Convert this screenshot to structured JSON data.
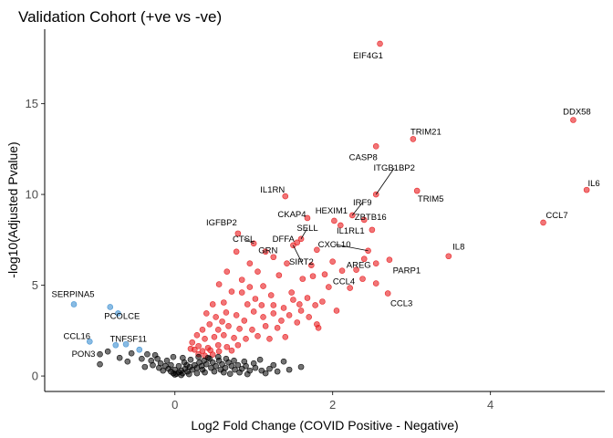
{
  "chart_data": {
    "type": "scatter",
    "title": "Validation Cohort (+ve vs -ve)",
    "xlabel": "Log2 Fold Change (COVID Positive - Negative)",
    "ylabel": "-log10(Adjusted Pvalue)",
    "xlim": [
      -1.65,
      5.45
    ],
    "ylim": [
      -0.85,
      19.1
    ],
    "xticks": [
      0,
      2,
      4
    ],
    "yticks": [
      0,
      5,
      10,
      15
    ],
    "grid": false,
    "legend": "none",
    "colors": {
      "up": "#e8191c",
      "down": "#3b8ed0",
      "ns": "#000000"
    },
    "labeled_points": [
      {
        "gene": "EIF4G1",
        "x": 2.6,
        "y": 18.3,
        "group": "up"
      },
      {
        "gene": "DDX58",
        "x": 5.05,
        "y": 14.1,
        "group": "up"
      },
      {
        "gene": "TRIM21",
        "x": 3.02,
        "y": 13.05,
        "group": "up"
      },
      {
        "gene": "CASP8",
        "x": 2.55,
        "y": 12.65,
        "group": "up"
      },
      {
        "gene": "IL6",
        "x": 5.22,
        "y": 10.25,
        "group": "up"
      },
      {
        "gene": "ITGB1BP2",
        "x": 2.55,
        "y": 10.0,
        "group": "up"
      },
      {
        "gene": "TRIM5",
        "x": 3.07,
        "y": 10.2,
        "group": "up"
      },
      {
        "gene": "IL1RN",
        "x": 1.4,
        "y": 9.9,
        "group": "up"
      },
      {
        "gene": "IRF9",
        "x": 2.25,
        "y": 8.85,
        "group": "up"
      },
      {
        "gene": "CCL7",
        "x": 4.67,
        "y": 8.45,
        "group": "up"
      },
      {
        "gene": "CKAP4",
        "x": 1.68,
        "y": 8.7,
        "group": "up"
      },
      {
        "gene": "HEXIM1",
        "x": 2.02,
        "y": 8.55,
        "group": "up"
      },
      {
        "gene": "ZBTB16",
        "x": 2.4,
        "y": 8.6,
        "group": "up"
      },
      {
        "gene": "IGFBP2",
        "x": 0.8,
        "y": 7.85,
        "group": "up"
      },
      {
        "gene": "SELL",
        "x": 1.6,
        "y": 7.55,
        "group": "up"
      },
      {
        "gene": "IL1RL1",
        "x": 2.1,
        "y": 8.3,
        "group": "up"
      },
      {
        "gene": "CTSL",
        "x": 1.0,
        "y": 7.3,
        "group": "up"
      },
      {
        "gene": "DFFA",
        "x": 1.55,
        "y": 7.35,
        "group": "up"
      },
      {
        "gene": "IL8",
        "x": 3.47,
        "y": 6.6,
        "group": "up"
      },
      {
        "gene": "CXCL10",
        "x": 2.45,
        "y": 6.9,
        "group": "up"
      },
      {
        "gene": "SIRT2",
        "x": 1.5,
        "y": 7.2,
        "group": "up"
      },
      {
        "gene": "GRN",
        "x": 1.25,
        "y": 6.55,
        "group": "up"
      },
      {
        "gene": "AREG",
        "x": 2.4,
        "y": 6.45,
        "group": "up"
      },
      {
        "gene": "PARP1",
        "x": 2.72,
        "y": 6.4,
        "group": "up"
      },
      {
        "gene": "CCL4",
        "x": 2.12,
        "y": 5.8,
        "group": "up"
      },
      {
        "gene": "CCL3",
        "x": 2.7,
        "y": 4.55,
        "group": "up"
      },
      {
        "gene": "SERPINA5",
        "x": -1.28,
        "y": 3.95,
        "group": "down"
      },
      {
        "gene": "PCOLCE",
        "x": -0.82,
        "y": 3.8,
        "group": "down"
      },
      {
        "gene": "CCL16",
        "x": -1.08,
        "y": 1.9,
        "group": "down"
      },
      {
        "gene": "TNFSF11",
        "x": -0.75,
        "y": 1.7,
        "group": "down"
      },
      {
        "gene": "PON3",
        "x": -0.95,
        "y": 1.2,
        "group": "ns"
      }
    ],
    "points": [
      {
        "x": -1.28,
        "y": 3.95,
        "group": "down"
      },
      {
        "x": -0.82,
        "y": 3.8,
        "group": "down"
      },
      {
        "x": -0.72,
        "y": 3.45,
        "group": "down"
      },
      {
        "x": -1.08,
        "y": 1.9,
        "group": "down"
      },
      {
        "x": -0.75,
        "y": 1.7,
        "group": "down"
      },
      {
        "x": -0.45,
        "y": 1.45,
        "group": "down"
      },
      {
        "x": -0.62,
        "y": 1.75,
        "group": "down"
      },
      {
        "x": 2.6,
        "y": 18.3,
        "group": "up"
      },
      {
        "x": 5.05,
        "y": 14.1,
        "group": "up"
      },
      {
        "x": 3.02,
        "y": 13.05,
        "group": "up"
      },
      {
        "x": 2.55,
        "y": 12.65,
        "group": "up"
      },
      {
        "x": 5.22,
        "y": 10.25,
        "group": "up"
      },
      {
        "x": 2.55,
        "y": 10.0,
        "group": "up"
      },
      {
        "x": 3.07,
        "y": 10.2,
        "group": "up"
      },
      {
        "x": 1.4,
        "y": 9.9,
        "group": "up"
      },
      {
        "x": 2.25,
        "y": 8.85,
        "group": "up"
      },
      {
        "x": 4.67,
        "y": 8.45,
        "group": "up"
      },
      {
        "x": 1.68,
        "y": 8.7,
        "group": "up"
      },
      {
        "x": 2.02,
        "y": 8.55,
        "group": "up"
      },
      {
        "x": 2.4,
        "y": 8.6,
        "group": "up"
      },
      {
        "x": 2.5,
        "y": 8.05,
        "group": "up"
      },
      {
        "x": 0.8,
        "y": 7.85,
        "group": "up"
      },
      {
        "x": 1.6,
        "y": 7.55,
        "group": "up"
      },
      {
        "x": 2.1,
        "y": 8.3,
        "group": "up"
      },
      {
        "x": 1.0,
        "y": 7.3,
        "group": "up"
      },
      {
        "x": 1.55,
        "y": 7.35,
        "group": "up"
      },
      {
        "x": 3.47,
        "y": 6.6,
        "group": "up"
      },
      {
        "x": 2.45,
        "y": 6.9,
        "group": "up"
      },
      {
        "x": 1.5,
        "y": 7.2,
        "group": "up"
      },
      {
        "x": 1.25,
        "y": 6.55,
        "group": "up"
      },
      {
        "x": 2.4,
        "y": 6.45,
        "group": "up"
      },
      {
        "x": 2.72,
        "y": 6.4,
        "group": "up"
      },
      {
        "x": 2.12,
        "y": 5.8,
        "group": "up"
      },
      {
        "x": 2.7,
        "y": 4.55,
        "group": "up"
      },
      {
        "x": 2.55,
        "y": 5.1,
        "group": "up"
      },
      {
        "x": 2.22,
        "y": 4.85,
        "group": "up"
      },
      {
        "x": 1.9,
        "y": 5.6,
        "group": "up"
      },
      {
        "x": 2.38,
        "y": 5.35,
        "group": "up"
      },
      {
        "x": 1.8,
        "y": 6.95,
        "group": "up"
      },
      {
        "x": 2.0,
        "y": 6.3,
        "group": "up"
      },
      {
        "x": 2.3,
        "y": 5.85,
        "group": "up"
      },
      {
        "x": 2.55,
        "y": 6.2,
        "group": "up"
      },
      {
        "x": 1.73,
        "y": 6.1,
        "group": "up"
      },
      {
        "x": 1.62,
        "y": 5.35,
        "group": "up"
      },
      {
        "x": 1.42,
        "y": 6.2,
        "group": "up"
      },
      {
        "x": 1.15,
        "y": 6.85,
        "group": "up"
      },
      {
        "x": 0.78,
        "y": 6.85,
        "group": "up"
      },
      {
        "x": 0.95,
        "y": 6.2,
        "group": "up"
      },
      {
        "x": 1.05,
        "y": 5.75,
        "group": "up"
      },
      {
        "x": 0.85,
        "y": 5.3,
        "group": "up"
      },
      {
        "x": 1.32,
        "y": 5.55,
        "group": "up"
      },
      {
        "x": 1.12,
        "y": 4.95,
        "group": "up"
      },
      {
        "x": 1.48,
        "y": 4.6,
        "group": "up"
      },
      {
        "x": 1.68,
        "y": 4.3,
        "group": "up"
      },
      {
        "x": 1.87,
        "y": 4.1,
        "group": "up"
      },
      {
        "x": 1.58,
        "y": 3.95,
        "group": "up"
      },
      {
        "x": 1.38,
        "y": 3.75,
        "group": "up"
      },
      {
        "x": 1.22,
        "y": 4.45,
        "group": "up"
      },
      {
        "x": 1.02,
        "y": 4.25,
        "group": "up"
      },
      {
        "x": 0.92,
        "y": 3.95,
        "group": "up"
      },
      {
        "x": 0.72,
        "y": 4.65,
        "group": "up"
      },
      {
        "x": 0.62,
        "y": 4.05,
        "group": "up"
      },
      {
        "x": 0.56,
        "y": 5.05,
        "group": "up"
      },
      {
        "x": 0.66,
        "y": 5.75,
        "group": "up"
      },
      {
        "x": 0.48,
        "y": 3.95,
        "group": "up"
      },
      {
        "x": 0.4,
        "y": 3.45,
        "group": "up"
      },
      {
        "x": 0.52,
        "y": 3.25,
        "group": "up"
      },
      {
        "x": 0.65,
        "y": 3.5,
        "group": "up"
      },
      {
        "x": 0.78,
        "y": 3.35,
        "group": "up"
      },
      {
        "x": 0.88,
        "y": 3.05,
        "group": "up"
      },
      {
        "x": 1.0,
        "y": 3.55,
        "group": "up"
      },
      {
        "x": 1.12,
        "y": 3.25,
        "group": "up"
      },
      {
        "x": 1.25,
        "y": 3.45,
        "group": "up"
      },
      {
        "x": 1.35,
        "y": 3.05,
        "group": "up"
      },
      {
        "x": 1.45,
        "y": 3.35,
        "group": "up"
      },
      {
        "x": 1.55,
        "y": 2.95,
        "group": "up"
      },
      {
        "x": 1.7,
        "y": 3.25,
        "group": "up"
      },
      {
        "x": 1.8,
        "y": 2.85,
        "group": "up"
      },
      {
        "x": 1.3,
        "y": 2.65,
        "group": "up"
      },
      {
        "x": 1.15,
        "y": 2.75,
        "group": "up"
      },
      {
        "x": 0.98,
        "y": 2.55,
        "group": "up"
      },
      {
        "x": 0.82,
        "y": 2.6,
        "group": "up"
      },
      {
        "x": 0.68,
        "y": 2.75,
        "group": "up"
      },
      {
        "x": 0.55,
        "y": 2.55,
        "group": "up"
      },
      {
        "x": 0.44,
        "y": 2.85,
        "group": "up"
      },
      {
        "x": 0.35,
        "y": 2.55,
        "group": "up"
      },
      {
        "x": 0.28,
        "y": 2.25,
        "group": "up"
      },
      {
        "x": 0.38,
        "y": 2.05,
        "group": "up"
      },
      {
        "x": 0.5,
        "y": 2.15,
        "group": "up"
      },
      {
        "x": 0.62,
        "y": 2.25,
        "group": "up"
      },
      {
        "x": 0.75,
        "y": 2.1,
        "group": "up"
      },
      {
        "x": 0.9,
        "y": 2.05,
        "group": "up"
      },
      {
        "x": 1.05,
        "y": 2.2,
        "group": "up"
      },
      {
        "x": 1.2,
        "y": 2.05,
        "group": "up"
      },
      {
        "x": 1.4,
        "y": 2.15,
        "group": "up"
      },
      {
        "x": 0.22,
        "y": 1.85,
        "group": "up"
      },
      {
        "x": 0.3,
        "y": 1.65,
        "group": "up"
      },
      {
        "x": 0.42,
        "y": 1.55,
        "group": "up"
      },
      {
        "x": 0.55,
        "y": 1.7,
        "group": "up"
      },
      {
        "x": 0.66,
        "y": 1.6,
        "group": "up"
      },
      {
        "x": 0.8,
        "y": 1.7,
        "group": "up"
      },
      {
        "x": 0.25,
        "y": 1.45,
        "group": "up"
      },
      {
        "x": 0.35,
        "y": 1.38,
        "group": "up"
      },
      {
        "x": 0.45,
        "y": 1.42,
        "group": "up"
      },
      {
        "x": 0.56,
        "y": 1.36,
        "group": "up"
      },
      {
        "x": 0.72,
        "y": 1.4,
        "group": "up"
      },
      {
        "x": 0.2,
        "y": 1.5,
        "group": "up"
      },
      {
        "x": 0.3,
        "y": 1.2,
        "group": "up"
      },
      {
        "x": 0.48,
        "y": 1.18,
        "group": "up"
      },
      {
        "x": 0.38,
        "y": 1.12,
        "group": "up"
      },
      {
        "x": 2.05,
        "y": 3.6,
        "group": "up"
      },
      {
        "x": 1.95,
        "y": 4.9,
        "group": "up"
      },
      {
        "x": 0.85,
        "y": 4.6,
        "group": "up"
      },
      {
        "x": 1.25,
        "y": 3.9,
        "group": "up"
      },
      {
        "x": 0.6,
        "y": 3.0,
        "group": "up"
      },
      {
        "x": 1.1,
        "y": 3.9,
        "group": "up"
      },
      {
        "x": 1.6,
        "y": 3.6,
        "group": "up"
      },
      {
        "x": 1.78,
        "y": 3.9,
        "group": "up"
      },
      {
        "x": 1.5,
        "y": 4.2,
        "group": "up"
      },
      {
        "x": 0.95,
        "y": 4.9,
        "group": "up"
      },
      {
        "x": 1.75,
        "y": 5.5,
        "group": "up"
      },
      {
        "x": 1.82,
        "y": 2.65,
        "group": "up"
      },
      {
        "x": -0.95,
        "y": 1.2,
        "group": "ns"
      },
      {
        "x": -0.85,
        "y": 1.35,
        "group": "ns"
      },
      {
        "x": -0.95,
        "y": 0.65,
        "group": "ns"
      },
      {
        "x": -0.55,
        "y": 1.25,
        "group": "ns"
      },
      {
        "x": -0.35,
        "y": 1.2,
        "group": "ns"
      },
      {
        "x": -0.25,
        "y": 1.15,
        "group": "ns"
      },
      {
        "x": -0.42,
        "y": 0.95,
        "group": "ns"
      },
      {
        "x": -0.3,
        "y": 0.85,
        "group": "ns"
      },
      {
        "x": -0.22,
        "y": 0.95,
        "group": "ns"
      },
      {
        "x": -0.18,
        "y": 0.7,
        "group": "ns"
      },
      {
        "x": -0.12,
        "y": 0.55,
        "group": "ns"
      },
      {
        "x": -0.08,
        "y": 0.4,
        "group": "ns"
      },
      {
        "x": -0.05,
        "y": 0.25,
        "group": "ns"
      },
      {
        "x": -0.02,
        "y": 0.15,
        "group": "ns"
      },
      {
        "x": 0.0,
        "y": 0.08,
        "group": "ns"
      },
      {
        "x": 0.02,
        "y": 0.12,
        "group": "ns"
      },
      {
        "x": 0.05,
        "y": 0.2,
        "group": "ns"
      },
      {
        "x": 0.08,
        "y": 0.3,
        "group": "ns"
      },
      {
        "x": 0.1,
        "y": 0.15,
        "group": "ns"
      },
      {
        "x": 0.13,
        "y": 0.4,
        "group": "ns"
      },
      {
        "x": 0.16,
        "y": 0.25,
        "group": "ns"
      },
      {
        "x": 0.19,
        "y": 0.5,
        "group": "ns"
      },
      {
        "x": 0.22,
        "y": 0.35,
        "group": "ns"
      },
      {
        "x": 0.25,
        "y": 0.6,
        "group": "ns"
      },
      {
        "x": 0.28,
        "y": 0.45,
        "group": "ns"
      },
      {
        "x": 0.31,
        "y": 0.75,
        "group": "ns"
      },
      {
        "x": 0.34,
        "y": 0.55,
        "group": "ns"
      },
      {
        "x": 0.37,
        "y": 0.85,
        "group": "ns"
      },
      {
        "x": 0.4,
        "y": 0.65,
        "group": "ns"
      },
      {
        "x": 0.44,
        "y": 0.95,
        "group": "ns"
      },
      {
        "x": 0.48,
        "y": 0.75,
        "group": "ns"
      },
      {
        "x": 0.52,
        "y": 0.55,
        "group": "ns"
      },
      {
        "x": 0.56,
        "y": 0.85,
        "group": "ns"
      },
      {
        "x": 0.6,
        "y": 0.65,
        "group": "ns"
      },
      {
        "x": 0.64,
        "y": 0.45,
        "group": "ns"
      },
      {
        "x": 0.68,
        "y": 0.75,
        "group": "ns"
      },
      {
        "x": 0.72,
        "y": 0.55,
        "group": "ns"
      },
      {
        "x": 0.76,
        "y": 0.35,
        "group": "ns"
      },
      {
        "x": 0.8,
        "y": 0.6,
        "group": "ns"
      },
      {
        "x": 0.85,
        "y": 0.4,
        "group": "ns"
      },
      {
        "x": 0.9,
        "y": 0.55,
        "group": "ns"
      },
      {
        "x": 0.95,
        "y": 0.3,
        "group": "ns"
      },
      {
        "x": 1.02,
        "y": 0.45,
        "group": "ns"
      },
      {
        "x": 1.1,
        "y": 0.3,
        "group": "ns"
      },
      {
        "x": 1.2,
        "y": 0.4,
        "group": "ns"
      },
      {
        "x": 1.3,
        "y": 0.25,
        "group": "ns"
      },
      {
        "x": 1.45,
        "y": 0.35,
        "group": "ns"
      },
      {
        "x": 1.6,
        "y": 0.5,
        "group": "ns"
      },
      {
        "x": -0.15,
        "y": 0.3,
        "group": "ns"
      },
      {
        "x": -0.2,
        "y": 0.45,
        "group": "ns"
      },
      {
        "x": -0.28,
        "y": 0.6,
        "group": "ns"
      },
      {
        "x": -0.1,
        "y": 0.85,
        "group": "ns"
      },
      {
        "x": 0.05,
        "y": 0.55,
        "group": "ns"
      },
      {
        "x": 0.12,
        "y": 0.75,
        "group": "ns"
      },
      {
        "x": 0.2,
        "y": 0.9,
        "group": "ns"
      },
      {
        "x": 0.3,
        "y": 1.05,
        "group": "ns"
      },
      {
        "x": 0.42,
        "y": 1.0,
        "group": "ns"
      },
      {
        "x": 0.55,
        "y": 1.05,
        "group": "ns"
      },
      {
        "x": 0.65,
        "y": 0.95,
        "group": "ns"
      },
      {
        "x": 0.75,
        "y": 0.85,
        "group": "ns"
      },
      {
        "x": 0.88,
        "y": 0.8,
        "group": "ns"
      },
      {
        "x": 1.0,
        "y": 0.7,
        "group": "ns"
      },
      {
        "x": 0.0,
        "y": 0.35,
        "group": "ns"
      },
      {
        "x": 0.08,
        "y": 0.05,
        "group": "ns"
      },
      {
        "x": 0.18,
        "y": 0.1,
        "group": "ns"
      },
      {
        "x": 0.28,
        "y": 0.15,
        "group": "ns"
      },
      {
        "x": 0.38,
        "y": 0.2,
        "group": "ns"
      },
      {
        "x": 0.5,
        "y": 0.25,
        "group": "ns"
      },
      {
        "x": 0.62,
        "y": 0.2,
        "group": "ns"
      },
      {
        "x": 0.7,
        "y": 0.12,
        "group": "ns"
      },
      {
        "x": -0.05,
        "y": 0.6,
        "group": "ns"
      },
      {
        "x": 0.15,
        "y": 0.6,
        "group": "ns"
      },
      {
        "x": 0.35,
        "y": 0.35,
        "group": "ns"
      },
      {
        "x": 0.46,
        "y": 0.45,
        "group": "ns"
      },
      {
        "x": 0.58,
        "y": 0.35,
        "group": "ns"
      },
      {
        "x": 0.82,
        "y": 0.2,
        "group": "ns"
      },
      {
        "x": 0.92,
        "y": 0.1,
        "group": "ns"
      },
      {
        "x": 1.15,
        "y": 0.15,
        "group": "ns"
      },
      {
        "x": -0.38,
        "y": 0.5,
        "group": "ns"
      },
      {
        "x": -0.6,
        "y": 0.8,
        "group": "ns"
      },
      {
        "x": -0.7,
        "y": 1.0,
        "group": "ns"
      },
      {
        "x": 1.08,
        "y": 0.9,
        "group": "ns"
      },
      {
        "x": 1.25,
        "y": 0.6,
        "group": "ns"
      },
      {
        "x": 1.38,
        "y": 0.8,
        "group": "ns"
      },
      {
        "x": 0.1,
        "y": 1.0,
        "group": "ns"
      },
      {
        "x": -0.02,
        "y": 1.05,
        "group": "ns"
      }
    ]
  }
}
